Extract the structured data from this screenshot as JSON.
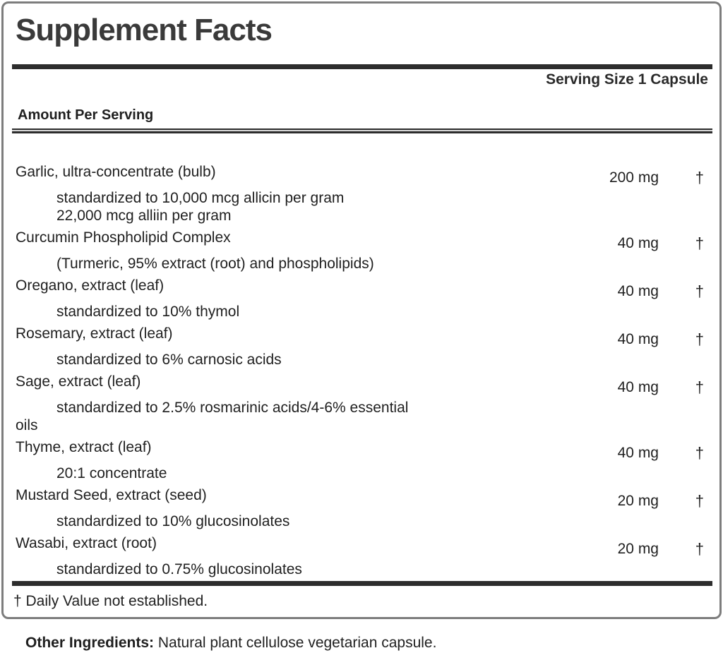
{
  "panel": {
    "title": "Supplement Facts",
    "serving_size": "Serving Size 1 Capsule",
    "column_header": "Amount Per Serving",
    "rows": [
      {
        "name": "Garlic, ultra-concentrate (bulb)",
        "amount": "200 mg",
        "daily_value": "†",
        "details": [
          {
            "text": "standardized to 10,000 mcg allicin per gram",
            "indent": true
          },
          {
            "text": "22,000 mcg alliin per gram",
            "indent": true
          }
        ]
      },
      {
        "name": "Curcumin Phospholipid Complex",
        "amount": "40 mg",
        "daily_value": "†",
        "details": [
          {
            "text": "(Turmeric, 95% extract (root) and phospholipids)",
            "indent": true
          }
        ]
      },
      {
        "name": "Oregano, extract (leaf)",
        "amount": "40 mg",
        "daily_value": "†",
        "details": [
          {
            "text": "standardized to 10% thymol",
            "indent": true
          }
        ]
      },
      {
        "name": "Rosemary, extract (leaf)",
        "amount": "40 mg",
        "daily_value": "†",
        "details": [
          {
            "text": "standardized to 6% carnosic acids",
            "indent": true
          }
        ]
      },
      {
        "name": "Sage, extract (leaf)",
        "amount": "40 mg",
        "daily_value": "†",
        "details": [
          {
            "text": "standardized to 2.5% rosmarinic acids/4-6% essential",
            "indent": true
          },
          {
            "text": "oils",
            "indent": false
          }
        ]
      },
      {
        "name": "Thyme, extract (leaf)",
        "amount": "40 mg",
        "daily_value": "†",
        "details": [
          {
            "text": "20:1 concentrate",
            "indent": true
          }
        ]
      },
      {
        "name": "Mustard Seed, extract (seed)",
        "amount": "20 mg",
        "daily_value": "†",
        "details": [
          {
            "text": "standardized to 10% glucosinolates",
            "indent": true
          }
        ]
      },
      {
        "name": "Wasabi, extract (root)",
        "amount": "20 mg",
        "daily_value": "†",
        "details": [
          {
            "text": "standardized to 0.75% glucosinolates",
            "indent": true
          }
        ]
      }
    ],
    "footnote": "† Daily Value not established.",
    "other_ingredients_label": "Other Ingredients:",
    "other_ingredients_text": " Natural plant cellulose vegetarian capsule.",
    "colors": {
      "text": "#1f1f1f",
      "title": "#3a3a3a",
      "bar": "#2d2d2d",
      "border": "#7d7d7d"
    }
  }
}
